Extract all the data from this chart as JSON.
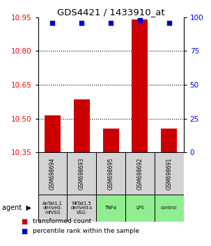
{
  "title": "GDS4421 / 1433910_at",
  "categories": [
    "GSM698694",
    "GSM698693",
    "GSM698695",
    "GSM698692",
    "GSM698691"
  ],
  "agent_labels": [
    "AnTat1.1\nderived-\nmfVSG",
    "MiTat1.5\nderived-s\nVSG",
    "TNFα",
    "LPS",
    "control"
  ],
  "agent_bg_colors": [
    "#d3d3d3",
    "#d3d3d3",
    "#90EE90",
    "#90EE90",
    "#90EE90"
  ],
  "bar_values": [
    10.515,
    10.585,
    10.455,
    10.94,
    10.455
  ],
  "percentile_values": [
    96,
    96,
    96,
    98,
    96
  ],
  "ymin": 10.35,
  "ymax": 10.95,
  "y2min": 0,
  "y2max": 100,
  "yticks": [
    10.35,
    10.5,
    10.65,
    10.8,
    10.95
  ],
  "y2ticks": [
    0,
    25,
    50,
    75,
    100
  ],
  "bar_color": "#CC0000",
  "dot_color": "#0000CC",
  "legend_red_label": "transformed count",
  "legend_blue_label": "percentile rank within the sample"
}
